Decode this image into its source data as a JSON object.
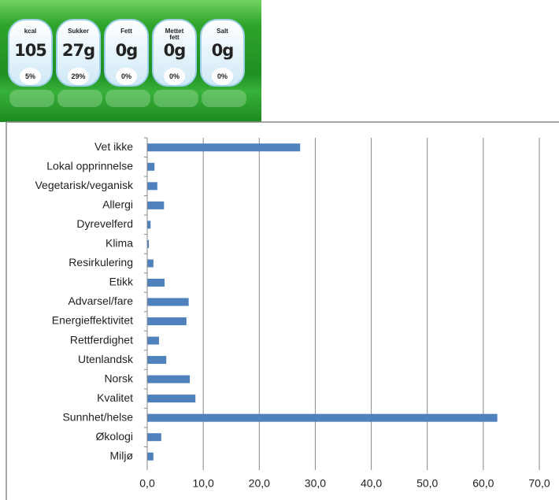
{
  "label": {
    "items": [
      {
        "name": "kcal",
        "amount": "105",
        "percent": "5%"
      },
      {
        "name": "Sukker",
        "amount": "27g",
        "percent": "29%"
      },
      {
        "name": "Fett",
        "amount": "0g",
        "percent": "0%"
      },
      {
        "name": "Mettet fett",
        "amount": "0g",
        "percent": "0%"
      },
      {
        "name": "Salt",
        "amount": "0g",
        "percent": "0%"
      }
    ]
  },
  "chart_data": {
    "type": "hbar",
    "categories": [
      "Vet ikke",
      "Lokal opprinnelse",
      "Vegetarisk/veganisk",
      "Allergi",
      "Dyrevelferd",
      "Klima",
      "Resirkulering",
      "Etikk",
      "Advarsel/fare",
      "Energieffektivitet",
      "Rettferdighet",
      "Utenlandsk",
      "Norsk",
      "Kvalitet",
      "Sunnhet/helse",
      "Økologi",
      "Miljø"
    ],
    "values": [
      27.3,
      1.3,
      1.8,
      3.0,
      0.6,
      0.3,
      1.1,
      3.1,
      7.4,
      7.0,
      2.1,
      3.4,
      7.6,
      8.6,
      62.5,
      2.5,
      1.1
    ],
    "color": "#4f81bd",
    "xlim": [
      0,
      70
    ],
    "xticks": [
      {
        "value": 0,
        "label": "0,0"
      },
      {
        "value": 10,
        "label": "10,0"
      },
      {
        "value": 20,
        "label": "20,0"
      },
      {
        "value": 30,
        "label": "30,0"
      },
      {
        "value": 40,
        "label": "40,0"
      },
      {
        "value": 50,
        "label": "50,0"
      },
      {
        "value": 60,
        "label": "60,0"
      },
      {
        "value": 70,
        "label": "70,0"
      }
    ],
    "grid": true
  }
}
